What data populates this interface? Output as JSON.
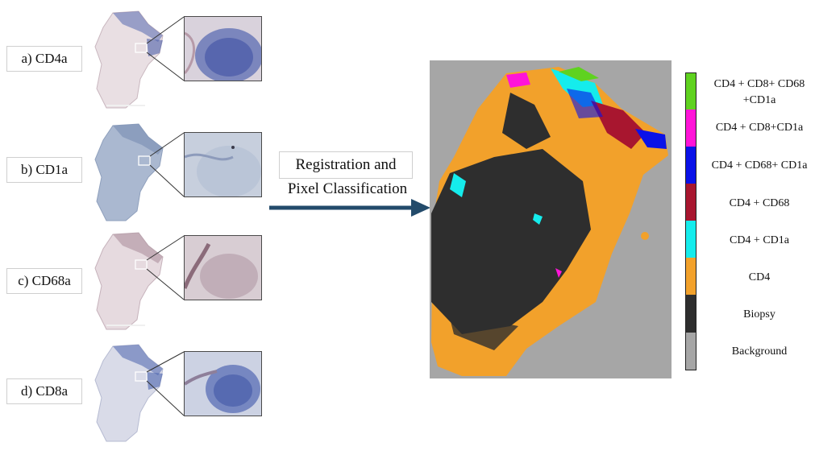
{
  "stains": [
    {
      "label": "a) CD4a",
      "tint": "#4d5fa8"
    },
    {
      "label": "b) CD1a",
      "tint": "#7f93b7"
    },
    {
      "label": "c) CD68a",
      "tint": "#a88a97"
    },
    {
      "label": "d) CD8a",
      "tint": "#4a62ad"
    }
  ],
  "process": {
    "line1": "Registration and",
    "line2": "Pixel Classification",
    "arrow_color": "#234b6b"
  },
  "legend": {
    "items": [
      {
        "label": "CD4 + CD8+ CD68 +CD1a",
        "color": "#5fd21f"
      },
      {
        "label": "CD4 + CD8+CD1a",
        "color": "#ff14d8"
      },
      {
        "label": "CD4 + CD68+ CD1a",
        "color": "#0a12e8"
      },
      {
        "label": "CD4 + CD68",
        "color": "#a8162f"
      },
      {
        "label": "CD4 + CD1a",
        "color": "#15ecec"
      },
      {
        "label": "CD4",
        "color": "#f2a12b"
      },
      {
        "label": "Biopsy",
        "color": "#2e2e2e"
      },
      {
        "label": "Background",
        "color": "#a6a6a6"
      }
    ]
  }
}
